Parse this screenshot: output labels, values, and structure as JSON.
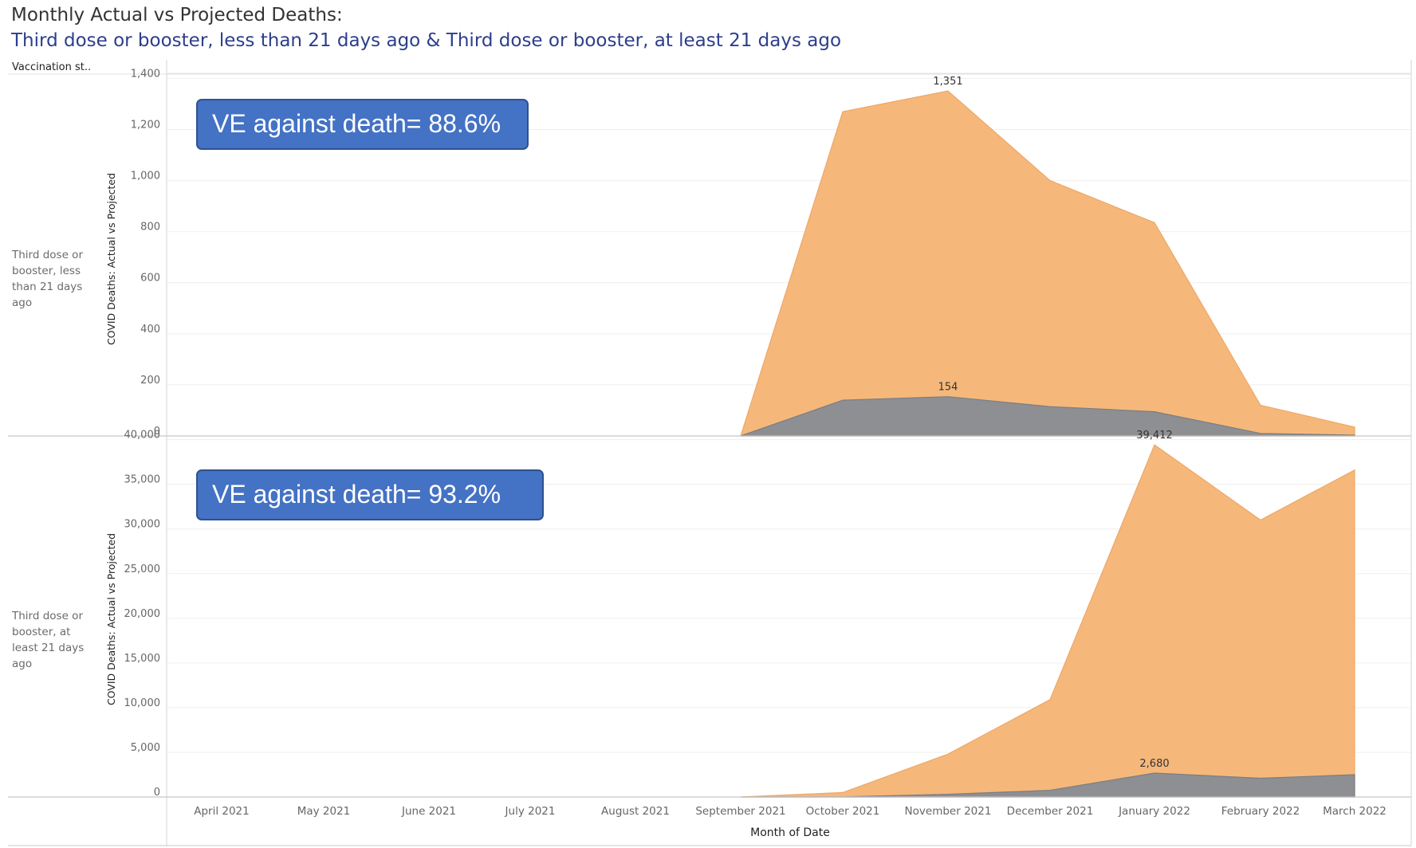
{
  "title": "Monthly Actual vs Projected Deaths:",
  "subtitle": "Third dose or booster, less than 21 days ago & Third dose or booster, at least 21 days ago",
  "row_header": "Vaccination st..",
  "colors": {
    "projected": "#f5b87a",
    "actual": "#8e8f93",
    "title": "#333333",
    "subtitle": "#2c3e8c",
    "ve_box": "#4472c4"
  },
  "chart_data": [
    {
      "type": "area",
      "row_label": "Third dose or booster, less than 21 days ago",
      "annotation": "VE against death= 88.6%",
      "ylabel": "COVID Deaths: Actual vs Projected",
      "xlabel": "Month of Date",
      "ylim": [
        0,
        1420
      ],
      "yticks": [
        0,
        200,
        400,
        600,
        800,
        1000,
        1200,
        1400
      ],
      "ytick_labels": [
        "0",
        "200",
        "400",
        "600",
        "800",
        "1,000",
        "1,200",
        "1,400"
      ],
      "categories": [
        "April 2021",
        "May 2021",
        "June 2021",
        "July 2021",
        "August 2021",
        "September 2021",
        "October 2021",
        "November 2021",
        "December 2021",
        "January 2022",
        "February 2022",
        "March 2022"
      ],
      "series": [
        {
          "name": "Projected",
          "values": [
            null,
            null,
            null,
            null,
            null,
            0,
            1270,
            1351,
            1000,
            835,
            120,
            35
          ]
        },
        {
          "name": "Actual",
          "values": [
            null,
            null,
            null,
            null,
            null,
            0,
            140,
            154,
            115,
            95,
            10,
            3
          ]
        }
      ],
      "data_labels": [
        {
          "category": "November 2021",
          "value": 1351,
          "text": "1,351"
        },
        {
          "category": "November 2021",
          "value": 154,
          "text": "154"
        }
      ]
    },
    {
      "type": "area",
      "row_label": "Third dose or booster, at least 21 days ago",
      "annotation": "VE against death= 93.2%",
      "ylabel": "COVID Deaths: Actual vs Projected",
      "xlabel": "Month of Date",
      "ylim": [
        0,
        40500
      ],
      "yticks": [
        0,
        5000,
        10000,
        15000,
        20000,
        25000,
        30000,
        35000,
        40000
      ],
      "ytick_labels": [
        "0",
        "5,000",
        "10,000",
        "15,000",
        "20,000",
        "25,000",
        "30,000",
        "35,000",
        "40,000"
      ],
      "categories": [
        "April 2021",
        "May 2021",
        "June 2021",
        "July 2021",
        "August 2021",
        "September 2021",
        "October 2021",
        "November 2021",
        "December 2021",
        "January 2022",
        "February 2022",
        "March 2022"
      ],
      "series": [
        {
          "name": "Projected",
          "values": [
            null,
            null,
            null,
            null,
            null,
            0,
            500,
            4800,
            10900,
            39412,
            31000,
            36600
          ]
        },
        {
          "name": "Actual",
          "values": [
            null,
            null,
            null,
            null,
            null,
            0,
            20,
            300,
            750,
            2680,
            2100,
            2500
          ]
        }
      ],
      "data_labels": [
        {
          "category": "January 2022",
          "value": 39412,
          "text": "39,412"
        },
        {
          "category": "January 2022",
          "value": 2680,
          "text": "2,680"
        }
      ]
    }
  ]
}
